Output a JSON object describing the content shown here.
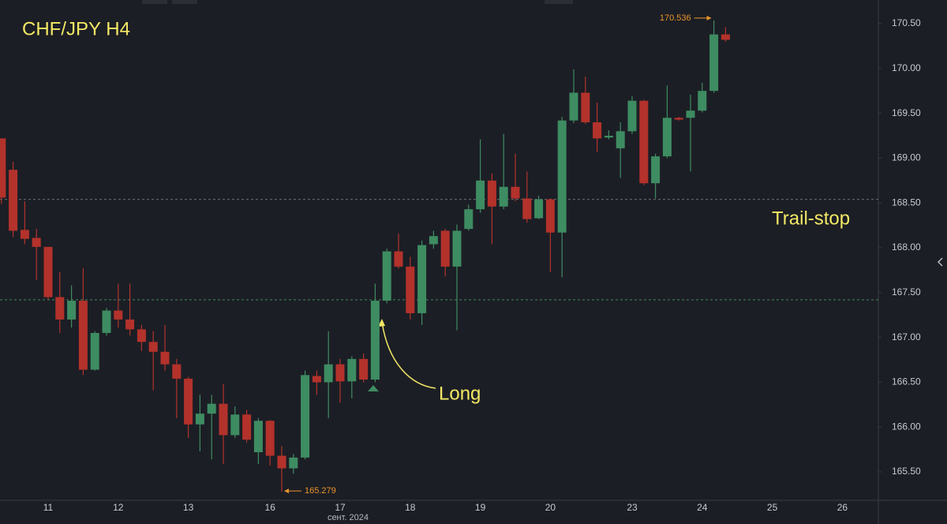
{
  "chart_data": {
    "type": "candlestick",
    "title": "CHF/JPY H4",
    "categories": [
      null,
      null,
      null,
      null,
      "11",
      null,
      null,
      null,
      null,
      null,
      "12",
      null,
      null,
      null,
      null,
      null,
      "13",
      null,
      null,
      null,
      null,
      null,
      null,
      "16",
      null,
      null,
      null,
      null,
      null,
      "17",
      null,
      null,
      null,
      null,
      null,
      "18",
      null,
      null,
      null,
      null,
      null,
      "19",
      null,
      null,
      null,
      null,
      null,
      "20",
      null,
      null,
      null,
      null,
      null,
      null,
      "23",
      null,
      null,
      null,
      null,
      null,
      "24",
      null,
      null,
      null,
      null,
      null,
      "25",
      null,
      null,
      null,
      null,
      null,
      "26",
      null,
      null
    ],
    "x_sublabel": "сент. 2024",
    "open": [
      169.22,
      168.87,
      168.2,
      168.11,
      168.01,
      167.45,
      167.2,
      167.41,
      166.64,
      167.05,
      167.3,
      167.2,
      167.09,
      166.95,
      166.84,
      166.7,
      166.54,
      166.03,
      166.15,
      166.26,
      165.91,
      166.14,
      165.72,
      166.07,
      165.68,
      165.54,
      165.66,
      166.57,
      166.5,
      166.7,
      166.51,
      166.76,
      166.53,
      167.41,
      167.96,
      167.79,
      167.27,
      168.04,
      168.19,
      167.79,
      168.21,
      168.43,
      168.75,
      168.46,
      168.68,
      168.55,
      168.33,
      168.54,
      168.17,
      169.42,
      169.73,
      169.4,
      169.23,
      169.11,
      169.3,
      169.64,
      168.72,
      169.02,
      169.45,
      169.45,
      169.53,
      169.75,
      170.38,
      null,
      null,
      null,
      null,
      null,
      null,
      null,
      null,
      null,
      null,
      null,
      null
    ],
    "high": [
      169.22,
      168.96,
      168.52,
      168.21,
      168.01,
      167.73,
      167.58,
      167.77,
      167.07,
      167.33,
      167.6,
      167.6,
      167.14,
      167.07,
      167.14,
      166.76,
      166.56,
      166.36,
      166.36,
      166.48,
      166.23,
      166.19,
      166.1,
      166.08,
      165.79,
      165.7,
      166.63,
      166.63,
      167.07,
      166.76,
      166.79,
      166.82,
      167.6,
      167.99,
      168.16,
      167.9,
      168.08,
      168.19,
      168.21,
      168.26,
      168.48,
      169.21,
      168.83,
      169.27,
      169.05,
      168.85,
      168.58,
      168.55,
      169.46,
      169.99,
      169.91,
      169.62,
      169.31,
      169.4,
      169.69,
      169.65,
      169.05,
      169.81,
      169.46,
      169.71,
      169.84,
      170.536,
      170.46,
      null,
      null,
      null,
      null,
      null,
      null,
      null,
      null,
      null,
      null,
      null,
      null
    ],
    "low": [
      168.49,
      168.12,
      168.04,
      167.64,
      167.42,
      167.05,
      167.11,
      166.58,
      166.63,
      167.02,
      167.11,
      167.02,
      166.85,
      166.41,
      166.63,
      166.1,
      165.88,
      165.73,
      165.64,
      165.59,
      165.88,
      165.83,
      165.59,
      165.57,
      165.279,
      165.48,
      165.64,
      166.36,
      166.1,
      166.27,
      166.32,
      166.5,
      166.5,
      167.38,
      167.77,
      167.2,
      167.14,
      167.99,
      167.68,
      167.08,
      168.19,
      168.39,
      168.04,
      168.43,
      168.52,
      168.28,
      168.32,
      167.73,
      167.67,
      169.39,
      169.38,
      169.07,
      169.21,
      168.78,
      169.27,
      168.7,
      168.55,
      169.0,
      169.42,
      168.85,
      169.51,
      169.73,
      170.3,
      null,
      null,
      null,
      null,
      null,
      null,
      null,
      null,
      null,
      null,
      null,
      null
    ],
    "close": [
      168.56,
      168.19,
      168.1,
      168.01,
      167.45,
      167.2,
      167.41,
      166.64,
      167.05,
      167.3,
      167.2,
      167.09,
      166.95,
      166.84,
      166.7,
      166.54,
      166.03,
      166.15,
      166.26,
      165.91,
      166.14,
      165.86,
      166.07,
      165.68,
      165.54,
      165.66,
      166.58,
      166.5,
      166.7,
      166.51,
      166.76,
      166.53,
      167.41,
      167.96,
      167.79,
      167.27,
      168.03,
      168.13,
      167.79,
      168.19,
      168.43,
      168.75,
      168.46,
      168.68,
      168.55,
      168.32,
      168.54,
      168.17,
      169.42,
      169.73,
      169.4,
      169.22,
      169.25,
      169.3,
      169.64,
      168.72,
      169.02,
      169.45,
      169.43,
      169.53,
      169.75,
      170.38,
      170.32,
      null,
      null,
      null,
      null,
      null,
      null,
      null,
      null,
      null,
      null,
      null,
      null
    ],
    "up_color": "#3e8c62",
    "down_color": "#b3322b",
    "marker_color": "#e8952d",
    "ylim": [
      165.183,
      170.764
    ],
    "yticks": [
      {
        "value": 165.5,
        "label": "165.50"
      },
      {
        "value": 166,
        "label": "166.00"
      },
      {
        "value": 166.5,
        "label": "166.50"
      },
      {
        "value": 167,
        "label": "167.00"
      },
      {
        "value": 167.5,
        "label": "167.50"
      },
      {
        "value": 168,
        "label": "168.00"
      },
      {
        "value": 168.5,
        "label": "168.50"
      },
      {
        "value": 169,
        "label": "169.00"
      },
      {
        "value": 169.5,
        "label": "169.50"
      },
      {
        "value": 170,
        "label": "170.00"
      },
      {
        "value": 170.5,
        "label": "170.50"
      }
    ],
    "levels": [
      {
        "value": 168.54,
        "color": "#6b6e76"
      },
      {
        "value": 167.42,
        "color": "#3e8c62"
      }
    ],
    "annotations": {
      "trail_stop": "Trail-stop",
      "long": "Long"
    },
    "annotation_color": "#f3e865"
  }
}
